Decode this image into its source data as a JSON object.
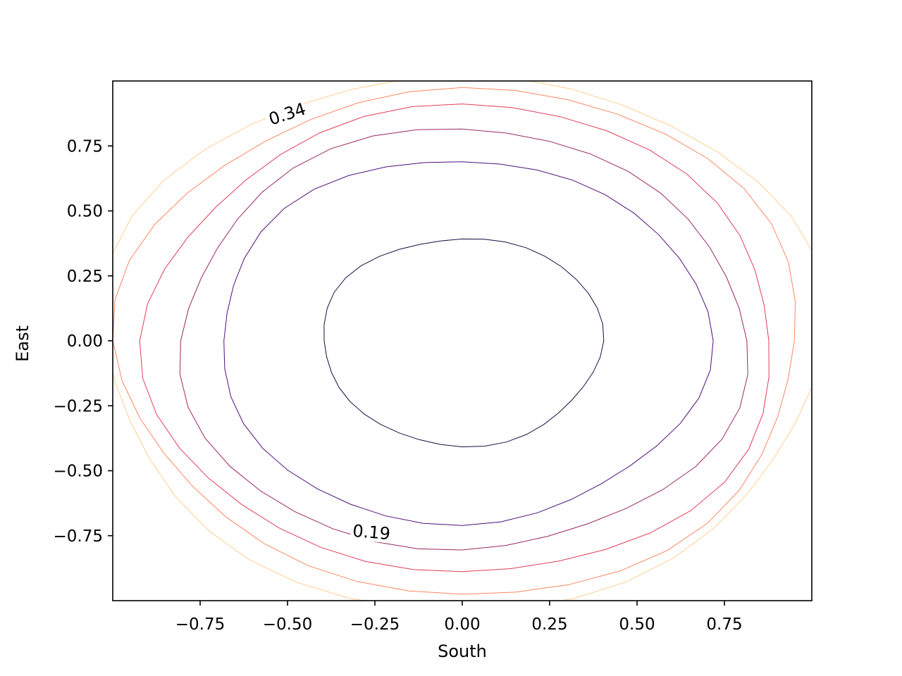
{
  "chart_data": {
    "type": "contour",
    "title": "",
    "xlabel": "South",
    "ylabel": "East",
    "xlim": [
      -1.0,
      1.0
    ],
    "ylim": [
      -1.0,
      1.0
    ],
    "grid": false,
    "x_ticks": [
      -0.75,
      -0.5,
      -0.25,
      0.0,
      0.25,
      0.5,
      0.75
    ],
    "x_tick_labels": [
      "−0.75",
      "−0.50",
      "−0.25",
      "0.00",
      "0.25",
      "0.50",
      "0.75"
    ],
    "y_ticks": [
      -0.75,
      -0.5,
      -0.25,
      0.0,
      0.25,
      0.5,
      0.75
    ],
    "y_tick_labels": [
      "−0.75",
      "−0.50",
      "−0.25",
      "0.00",
      "0.25",
      "0.50",
      "0.75"
    ],
    "colormap": "magma",
    "levels": [
      {
        "index": 0,
        "radius": 0.4,
        "color": "#1b0c41"
      },
      {
        "index": 1,
        "radius": 0.7,
        "color": "#4f0f7a"
      },
      {
        "index": 2,
        "radius": 0.81,
        "color": "#9a2865"
      },
      {
        "index": 3,
        "radius": 0.9,
        "color": "#e13d57"
      },
      {
        "index": 4,
        "radius": 0.975,
        "color": "#fb8761"
      },
      {
        "index": 5,
        "radius": 1.03,
        "color": "#fecf92"
      }
    ],
    "contour_labels": [
      {
        "text": "0.34",
        "x": -0.5,
        "y": 0.87,
        "angle": -18
      },
      {
        "text": "0.19",
        "x": -0.26,
        "y": -0.74,
        "angle": 5
      }
    ]
  }
}
